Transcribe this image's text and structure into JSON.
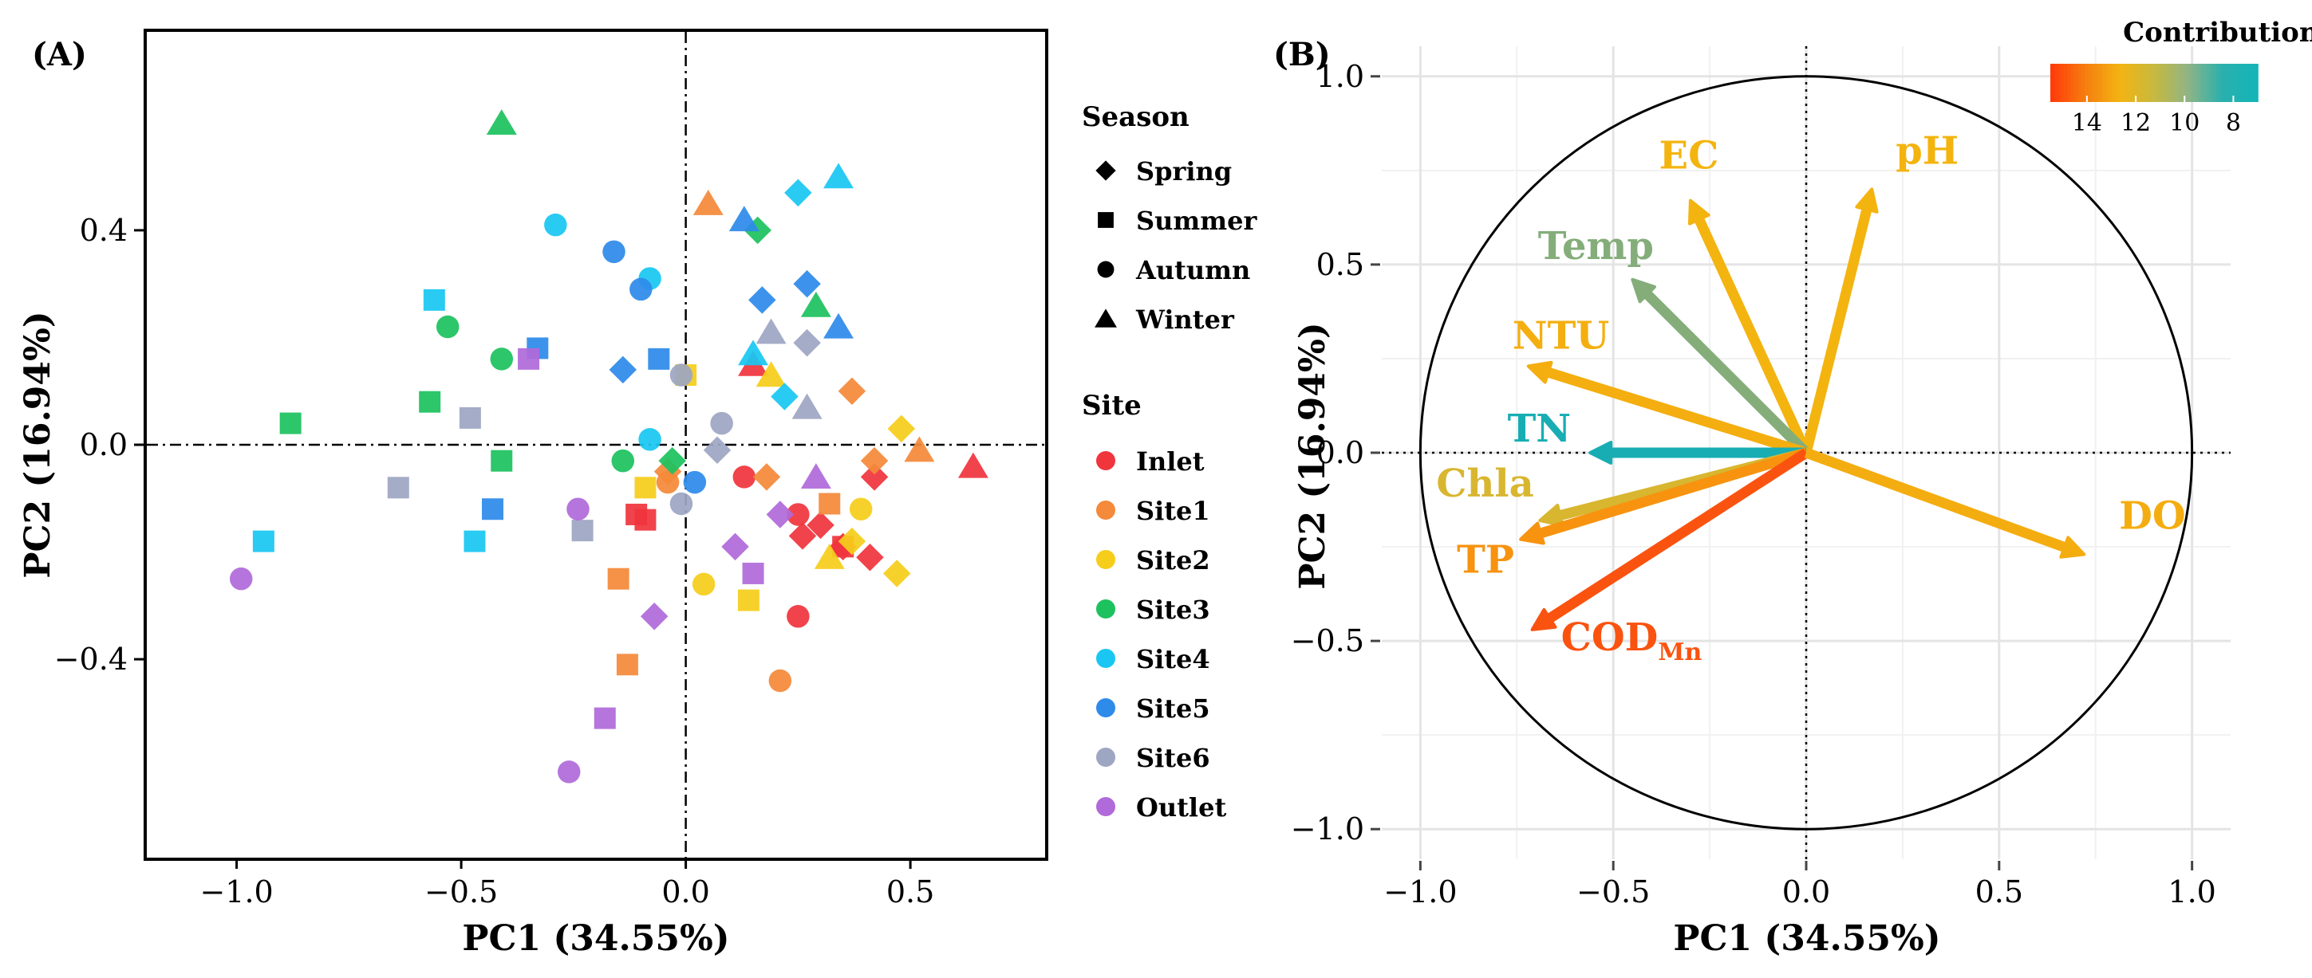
{
  "chart_data": [
    {
      "type": "scatter",
      "panel_label": "(A)",
      "xlabel": "PC1 (34.55%)",
      "ylabel": "PC2 (16.94%)",
      "xlim": [
        -1.2,
        0.8
      ],
      "ylim": [
        -0.77,
        0.77
      ],
      "x_ticks": [
        -1.0,
        -0.5,
        0.0,
        0.5
      ],
      "x_tick_labels": [
        "−1.0",
        "−0.5",
        "0.0",
        "0.5"
      ],
      "y_ticks": [
        -0.4,
        0.0,
        0.4
      ],
      "y_tick_labels": [
        "−0.4",
        "0.0",
        "0.4"
      ],
      "legend_season_title": "Season",
      "legend_site_title": "Site",
      "seasons": [
        {
          "name": "Spring",
          "shape": "diamond"
        },
        {
          "name": "Summer",
          "shape": "square"
        },
        {
          "name": "Autumn",
          "shape": "circle"
        },
        {
          "name": "Winter",
          "shape": "triangle"
        }
      ],
      "sites": [
        {
          "name": "Inlet",
          "color": "#f0353d"
        },
        {
          "name": "Site1",
          "color": "#f48a3a"
        },
        {
          "name": "Site2",
          "color": "#f6cd1b"
        },
        {
          "name": "Site3",
          "color": "#1dc25f"
        },
        {
          "name": "Site4",
          "color": "#19c7f2"
        },
        {
          "name": "Site5",
          "color": "#2e8bea"
        },
        {
          "name": "Site6",
          "color": "#9da6c3"
        },
        {
          "name": "Outlet",
          "color": "#b06ad9"
        }
      ],
      "points": [
        {
          "x": 0.3,
          "y": -0.15,
          "site": "Inlet",
          "season": "Spring"
        },
        {
          "x": 0.35,
          "y": -0.19,
          "site": "Inlet",
          "season": "Spring"
        },
        {
          "x": 0.41,
          "y": -0.21,
          "site": "Inlet",
          "season": "Spring"
        },
        {
          "x": 0.42,
          "y": -0.06,
          "site": "Inlet",
          "season": "Spring"
        },
        {
          "x": 0.26,
          "y": -0.17,
          "site": "Inlet",
          "season": "Spring"
        },
        {
          "x": -0.11,
          "y": -0.13,
          "site": "Inlet",
          "season": "Summer"
        },
        {
          "x": -0.09,
          "y": -0.14,
          "site": "Inlet",
          "season": "Summer"
        },
        {
          "x": 0.35,
          "y": -0.19,
          "site": "Inlet",
          "season": "Summer"
        },
        {
          "x": 0.13,
          "y": -0.06,
          "site": "Inlet",
          "season": "Autumn"
        },
        {
          "x": 0.25,
          "y": -0.13,
          "site": "Inlet",
          "season": "Autumn"
        },
        {
          "x": 0.25,
          "y": -0.32,
          "site": "Inlet",
          "season": "Autumn"
        },
        {
          "x": 0.64,
          "y": -0.04,
          "site": "Inlet",
          "season": "Winter"
        },
        {
          "x": 0.15,
          "y": 0.15,
          "site": "Inlet",
          "season": "Winter"
        },
        {
          "x": 0.37,
          "y": 0.1,
          "site": "Site1",
          "season": "Spring"
        },
        {
          "x": 0.42,
          "y": -0.03,
          "site": "Site1",
          "season": "Spring"
        },
        {
          "x": 0.18,
          "y": -0.06,
          "site": "Site1",
          "season": "Spring"
        },
        {
          "x": -0.04,
          "y": -0.05,
          "site": "Site1",
          "season": "Spring"
        },
        {
          "x": 0.32,
          "y": -0.11,
          "site": "Site1",
          "season": "Summer"
        },
        {
          "x": -0.15,
          "y": -0.25,
          "site": "Site1",
          "season": "Summer"
        },
        {
          "x": -0.13,
          "y": -0.41,
          "site": "Site1",
          "season": "Summer"
        },
        {
          "x": 0.21,
          "y": -0.44,
          "site": "Site1",
          "season": "Autumn"
        },
        {
          "x": -0.04,
          "y": -0.07,
          "site": "Site1",
          "season": "Autumn"
        },
        {
          "x": 0.52,
          "y": -0.01,
          "site": "Site1",
          "season": "Winter"
        },
        {
          "x": 0.05,
          "y": 0.45,
          "site": "Site1",
          "season": "Winter"
        },
        {
          "x": 0.48,
          "y": 0.03,
          "site": "Site2",
          "season": "Spring"
        },
        {
          "x": 0.47,
          "y": -0.24,
          "site": "Site2",
          "season": "Spring"
        },
        {
          "x": 0.37,
          "y": -0.18,
          "site": "Site2",
          "season": "Spring"
        },
        {
          "x": -0.09,
          "y": -0.08,
          "site": "Site2",
          "season": "Summer"
        },
        {
          "x": 0.14,
          "y": -0.29,
          "site": "Site2",
          "season": "Summer"
        },
        {
          "x": 0.0,
          "y": 0.13,
          "site": "Site2",
          "season": "Summer"
        },
        {
          "x": 0.04,
          "y": -0.26,
          "site": "Site2",
          "season": "Autumn"
        },
        {
          "x": 0.39,
          "y": -0.12,
          "site": "Site2",
          "season": "Autumn"
        },
        {
          "x": 0.19,
          "y": 0.13,
          "site": "Site2",
          "season": "Winter"
        },
        {
          "x": 0.32,
          "y": -0.21,
          "site": "Site2",
          "season": "Winter"
        },
        {
          "x": 0.16,
          "y": 0.4,
          "site": "Site3",
          "season": "Spring"
        },
        {
          "x": -0.03,
          "y": -0.03,
          "site": "Site3",
          "season": "Spring"
        },
        {
          "x": -0.88,
          "y": 0.04,
          "site": "Site3",
          "season": "Summer"
        },
        {
          "x": -0.57,
          "y": 0.08,
          "site": "Site3",
          "season": "Summer"
        },
        {
          "x": -0.41,
          "y": -0.03,
          "site": "Site3",
          "season": "Summer"
        },
        {
          "x": -0.53,
          "y": 0.22,
          "site": "Site3",
          "season": "Autumn"
        },
        {
          "x": -0.41,
          "y": 0.16,
          "site": "Site3",
          "season": "Autumn"
        },
        {
          "x": -0.14,
          "y": -0.03,
          "site": "Site3",
          "season": "Autumn"
        },
        {
          "x": -0.41,
          "y": 0.6,
          "site": "Site3",
          "season": "Winter"
        },
        {
          "x": 0.29,
          "y": 0.26,
          "site": "Site3",
          "season": "Winter"
        },
        {
          "x": 0.25,
          "y": 0.47,
          "site": "Site4",
          "season": "Spring"
        },
        {
          "x": 0.22,
          "y": 0.09,
          "site": "Site4",
          "season": "Spring"
        },
        {
          "x": -0.56,
          "y": 0.27,
          "site": "Site4",
          "season": "Summer"
        },
        {
          "x": -0.94,
          "y": -0.18,
          "site": "Site4",
          "season": "Summer"
        },
        {
          "x": -0.47,
          "y": -0.18,
          "site": "Site4",
          "season": "Summer"
        },
        {
          "x": -0.29,
          "y": 0.41,
          "site": "Site4",
          "season": "Autumn"
        },
        {
          "x": -0.08,
          "y": 0.31,
          "site": "Site4",
          "season": "Autumn"
        },
        {
          "x": -0.08,
          "y": 0.01,
          "site": "Site4",
          "season": "Autumn"
        },
        {
          "x": 0.34,
          "y": 0.5,
          "site": "Site4",
          "season": "Winter"
        },
        {
          "x": 0.15,
          "y": 0.17,
          "site": "Site4",
          "season": "Winter"
        },
        {
          "x": 0.17,
          "y": 0.27,
          "site": "Site5",
          "season": "Spring"
        },
        {
          "x": 0.27,
          "y": 0.3,
          "site": "Site5",
          "season": "Spring"
        },
        {
          "x": -0.14,
          "y": 0.14,
          "site": "Site5",
          "season": "Spring"
        },
        {
          "x": -0.33,
          "y": 0.18,
          "site": "Site5",
          "season": "Summer"
        },
        {
          "x": -0.06,
          "y": 0.16,
          "site": "Site5",
          "season": "Summer"
        },
        {
          "x": -0.43,
          "y": -0.12,
          "site": "Site5",
          "season": "Summer"
        },
        {
          "x": -0.16,
          "y": 0.36,
          "site": "Site5",
          "season": "Autumn"
        },
        {
          "x": -0.1,
          "y": 0.29,
          "site": "Site5",
          "season": "Autumn"
        },
        {
          "x": 0.02,
          "y": -0.07,
          "site": "Site5",
          "season": "Autumn"
        },
        {
          "x": 0.13,
          "y": 0.42,
          "site": "Site5",
          "season": "Winter"
        },
        {
          "x": 0.34,
          "y": 0.22,
          "site": "Site5",
          "season": "Winter"
        },
        {
          "x": 0.27,
          "y": 0.19,
          "site": "Site6",
          "season": "Spring"
        },
        {
          "x": 0.07,
          "y": -0.01,
          "site": "Site6",
          "season": "Spring"
        },
        {
          "x": -0.48,
          "y": 0.05,
          "site": "Site6",
          "season": "Summer"
        },
        {
          "x": -0.64,
          "y": -0.08,
          "site": "Site6",
          "season": "Summer"
        },
        {
          "x": -0.23,
          "y": -0.16,
          "site": "Site6",
          "season": "Summer"
        },
        {
          "x": -0.01,
          "y": 0.13,
          "site": "Site6",
          "season": "Autumn"
        },
        {
          "x": 0.08,
          "y": 0.04,
          "site": "Site6",
          "season": "Autumn"
        },
        {
          "x": -0.01,
          "y": -0.11,
          "site": "Site6",
          "season": "Autumn"
        },
        {
          "x": 0.19,
          "y": 0.21,
          "site": "Site6",
          "season": "Winter"
        },
        {
          "x": 0.27,
          "y": 0.07,
          "site": "Site6",
          "season": "Winter"
        },
        {
          "x": -0.07,
          "y": -0.32,
          "site": "Outlet",
          "season": "Spring"
        },
        {
          "x": 0.11,
          "y": -0.19,
          "site": "Outlet",
          "season": "Spring"
        },
        {
          "x": 0.21,
          "y": -0.13,
          "site": "Outlet",
          "season": "Spring"
        },
        {
          "x": -0.35,
          "y": 0.16,
          "site": "Outlet",
          "season": "Summer"
        },
        {
          "x": 0.15,
          "y": -0.24,
          "site": "Outlet",
          "season": "Summer"
        },
        {
          "x": -0.18,
          "y": -0.51,
          "site": "Outlet",
          "season": "Summer"
        },
        {
          "x": -0.99,
          "y": -0.25,
          "site": "Outlet",
          "season": "Autumn"
        },
        {
          "x": -0.24,
          "y": -0.12,
          "site": "Outlet",
          "season": "Autumn"
        },
        {
          "x": -0.26,
          "y": -0.61,
          "site": "Outlet",
          "season": "Autumn"
        },
        {
          "x": 0.29,
          "y": -0.06,
          "site": "Outlet",
          "season": "Winter"
        }
      ]
    },
    {
      "type": "biplot",
      "panel_label": "(B)",
      "xlabel": "PC1 (34.55%)",
      "ylabel": "PC2 (16.94%)",
      "xlim": [
        -1.1,
        1.1
      ],
      "ylim": [
        -1.08,
        1.08
      ],
      "x_ticks": [
        -1.0,
        -0.5,
        0.0,
        0.5,
        1.0
      ],
      "x_tick_labels": [
        "−1.0",
        "−0.5",
        "0.0",
        "0.5",
        "1.0"
      ],
      "y_ticks": [
        -1.0,
        -0.5,
        0.0,
        0.5,
        1.0
      ],
      "y_tick_labels": [
        "−1.0",
        "−0.5",
        "0.0",
        "0.5",
        "1.0"
      ],
      "unit_circle": true,
      "colorbar": {
        "title": "Contribution (%)",
        "range": [
          7,
          15.5
        ],
        "ticks": [
          14,
          12,
          10,
          8
        ],
        "tick_labels": [
          "14",
          "12",
          "10",
          "8"
        ],
        "colors": [
          "#ff3c0a",
          "#f57f0f",
          "#f3b413",
          "#c7b93e",
          "#8fb486",
          "#2ab0ad",
          "#14b4b7"
        ]
      },
      "vectors": [
        {
          "name": "pH",
          "sub": "",
          "x": 0.17,
          "y": 0.7,
          "contribution": 11.3,
          "color": "#f4b40f"
        },
        {
          "name": "EC",
          "sub": "",
          "x": -0.3,
          "y": 0.67,
          "contribution": 11.3,
          "color": "#f4b40f"
        },
        {
          "name": "Temp",
          "sub": "",
          "x": -0.45,
          "y": 0.46,
          "contribution": 9.3,
          "color": "#84ad7a"
        },
        {
          "name": "NTU",
          "sub": "",
          "x": -0.72,
          "y": 0.23,
          "contribution": 11.5,
          "color": "#f4ae10"
        },
        {
          "name": "TN",
          "sub": "",
          "x": -0.56,
          "y": 0.0,
          "contribution": 7.8,
          "color": "#17adb3"
        },
        {
          "name": "Chla",
          "sub": "",
          "x": -0.69,
          "y": -0.18,
          "contribution": 10.6,
          "color": "#d8b630"
        },
        {
          "name": "TP",
          "sub": "",
          "x": -0.74,
          "y": -0.23,
          "contribution": 12.4,
          "color": "#f7930f"
        },
        {
          "name": "COD",
          "sub": "Mn",
          "x": -0.71,
          "y": -0.47,
          "contribution": 14.3,
          "color": "#fa5310"
        },
        {
          "name": "DO",
          "sub": "",
          "x": 0.72,
          "y": -0.27,
          "contribution": 11.6,
          "color": "#f4ad10"
        }
      ]
    }
  ]
}
